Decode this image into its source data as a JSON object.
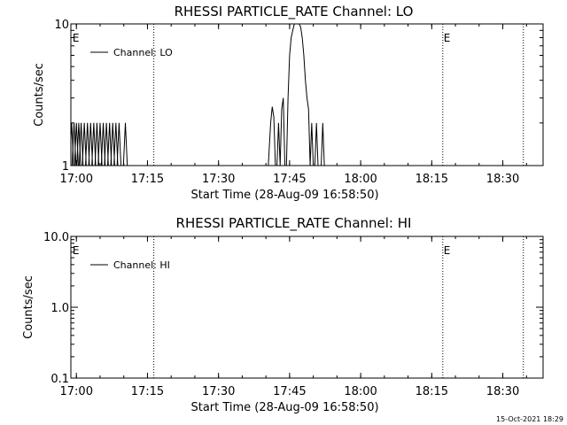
{
  "chart_data": [
    {
      "type": "line",
      "title": "RHESSI PARTICLE_RATE Channel: LO",
      "xlabel": "Start Time (28-Aug-09 16:58:50)",
      "ylabel": "Counts/sec",
      "y_scale": "log",
      "ylim": [
        1,
        10
      ],
      "xlim": [
        "16:58:50",
        "18:38:30"
      ],
      "x_ticks": [
        "17:00",
        "17:15",
        "17:30",
        "17:45",
        "18:00",
        "18:15",
        "18:30"
      ],
      "y_ticks": [
        "1",
        "10"
      ],
      "legend": "Channel: LO",
      "legend_position": "top-left",
      "event_markers": [
        {
          "time": "16:59:00",
          "label": "E",
          "line": false
        },
        {
          "time": "17:16:20",
          "label": "",
          "line": true
        },
        {
          "time": "18:17:20",
          "label": "E",
          "line": true
        },
        {
          "time": "18:34:20",
          "label": "",
          "line": true
        }
      ],
      "series": [
        {
          "name": "Channel: LO",
          "spikes": [
            "16:59:00",
            "16:59:30",
            "17:00:00",
            "17:00:30",
            "17:01:00",
            "17:01:40",
            "17:02:20",
            "17:03:00",
            "17:03:40",
            "17:04:20",
            "17:05:00",
            "17:05:40",
            "17:06:20",
            "17:07:00",
            "17:07:40",
            "17:08:20",
            "17:09:00",
            "17:10:20"
          ],
          "spike_value": 2,
          "x": [
            "17:40:30",
            "17:41:00",
            "17:41:20",
            "17:41:40",
            "17:42:00",
            "17:42:20",
            "17:42:40",
            "17:43:00",
            "17:43:20",
            "17:43:40",
            "17:44:00",
            "17:44:20",
            "17:44:40",
            "17:45:00",
            "17:45:20",
            "17:45:40",
            "17:46:00",
            "17:46:20",
            "17:46:40",
            "17:47:00",
            "17:47:20",
            "17:47:40",
            "17:48:00",
            "17:48:20",
            "17:48:40",
            "17:49:00",
            "17:49:20",
            "17:49:40",
            "17:50:00",
            "17:50:20",
            "17:50:40",
            "17:51:00",
            "17:51:20",
            "17:51:40",
            "17:52:00",
            "17:52:20",
            "17:52:40"
          ],
          "y": [
            1,
            2,
            2.6,
            2.2,
            1,
            1,
            2,
            1,
            2.5,
            3,
            1,
            1,
            3,
            6,
            8,
            9,
            10,
            10,
            10,
            10,
            9.5,
            8,
            6,
            4,
            3,
            2.5,
            1,
            2,
            1,
            1,
            2,
            1,
            1,
            1,
            2,
            1,
            1
          ]
        }
      ]
    },
    {
      "type": "line",
      "title": "RHESSI PARTICLE_RATE Channel: HI",
      "xlabel": "Start Time (28-Aug-09 16:58:50)",
      "ylabel": "Counts/sec",
      "y_scale": "log",
      "ylim": [
        0.1,
        10
      ],
      "xlim": [
        "16:58:50",
        "18:38:30"
      ],
      "x_ticks": [
        "17:00",
        "17:15",
        "17:30",
        "17:45",
        "18:00",
        "18:15",
        "18:30"
      ],
      "y_ticks": [
        "0.1",
        "1.0",
        "10.0"
      ],
      "legend": "Channel: HI",
      "legend_position": "top-left",
      "event_markers": [
        {
          "time": "16:59:00",
          "label": "E",
          "line": false
        },
        {
          "time": "17:16:20",
          "label": "",
          "line": true
        },
        {
          "time": "18:17:20",
          "label": "E",
          "line": true
        },
        {
          "time": "18:34:20",
          "label": "",
          "line": true
        }
      ],
      "series": [
        {
          "name": "Channel: HI",
          "x": [],
          "y": []
        }
      ]
    }
  ],
  "footer": {
    "date_stamp": "15-Oct-2021 18:29"
  }
}
